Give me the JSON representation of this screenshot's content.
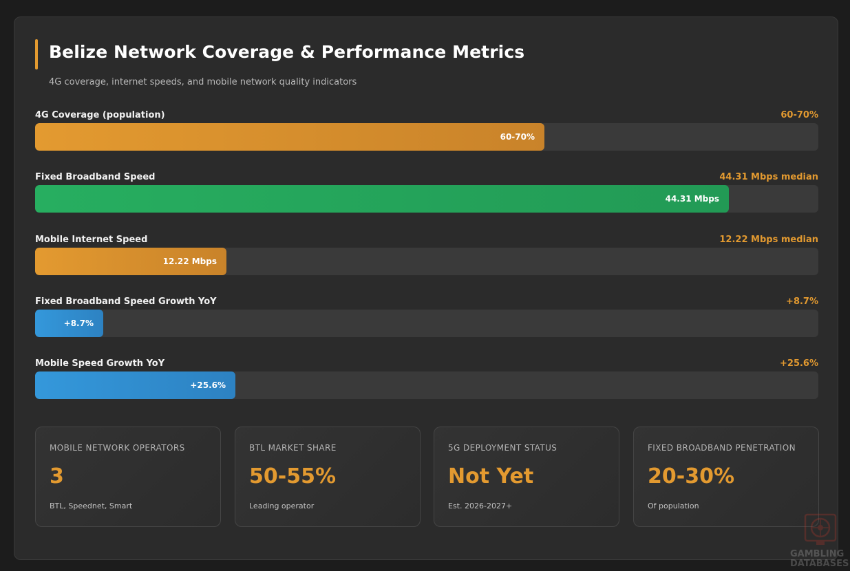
{
  "header": {
    "title": "Belize Network Coverage & Performance Metrics",
    "subtitle": "4G coverage, internet speeds, and mobile network quality indicators"
  },
  "colors": {
    "accent": "#e39a30",
    "orange": "#e39a30",
    "green": "#27ae60",
    "blue": "#3498db",
    "track": "#3a3a3a",
    "card": "#2b2b2b",
    "background": "#1c1c1c"
  },
  "chart_data": {
    "type": "bar",
    "orientation": "horizontal",
    "grid": false,
    "categories": [
      "4G Coverage (population)",
      "Fixed Broadband Speed",
      "Mobile Internet Speed",
      "Fixed Broadband Speed Growth YoY",
      "Mobile Speed Growth YoY"
    ],
    "values": [
      65,
      88.6,
      24.4,
      8.7,
      25.6
    ],
    "value_unit": "percent of bar track filled",
    "bar_labels": [
      "60-70%",
      "44.31 Mbps",
      "12.22 Mbps",
      "+8.7%",
      "+25.6%"
    ],
    "value_labels": [
      "60-70%",
      "44.31 Mbps median",
      "12.22 Mbps median",
      "+8.7%",
      "+25.6%"
    ],
    "bar_colors": [
      "orange",
      "green",
      "orange",
      "blue",
      "blue"
    ],
    "xlim": [
      0,
      100
    ]
  },
  "stats": [
    {
      "label": "MOBILE NETWORK OPERATORS",
      "value": "3",
      "desc": "BTL, Speednet, Smart"
    },
    {
      "label": "BTL MARKET SHARE",
      "value": "50-55%",
      "desc": "Leading operator"
    },
    {
      "label": "5G DEPLOYMENT STATUS",
      "value": "Not Yet",
      "desc": "Est. 2026-2027+"
    },
    {
      "label": "FIXED BROADBAND PENETRATION",
      "value": "20-30%",
      "desc": "Of population"
    }
  ],
  "watermark": {
    "line1": "GAMBLING",
    "line2": "DATABASES",
    "icon": "roulette-icon"
  }
}
